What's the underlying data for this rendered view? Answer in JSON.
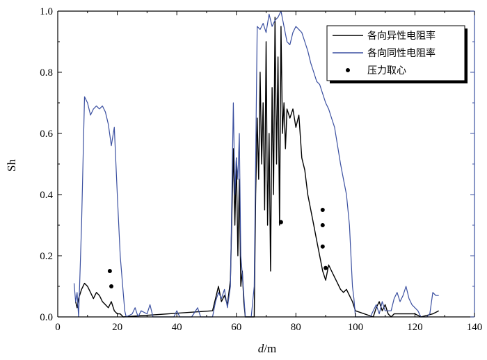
{
  "chart_data": {
    "type": "line",
    "xlabel_italic": "d",
    "xlabel_unit": "/m",
    "ylabel": "Sh",
    "xlim": [
      0,
      140
    ],
    "ylim": [
      0,
      1.0
    ],
    "x_ticks": [
      0,
      20,
      40,
      60,
      80,
      100,
      120,
      140
    ],
    "y_ticks": [
      0.0,
      0.2,
      0.4,
      0.6,
      0.8,
      1.0
    ],
    "x_tick_labels": [
      "0",
      "20",
      "40",
      "60",
      "80",
      "100",
      "120",
      "140"
    ],
    "y_tick_labels": [
      "0.0",
      "0.2",
      "0.4",
      "0.6",
      "0.8",
      "1.0"
    ],
    "grid": false,
    "legend_position": "top-right",
    "series": [
      {
        "name": "各向异性电阻率",
        "kind": "line",
        "color": "#000000",
        "points": [
          [
            6,
            0.05
          ],
          [
            6.5,
            0.03
          ],
          [
            7,
            0.06
          ],
          [
            8,
            0.09
          ],
          [
            9,
            0.11
          ],
          [
            10,
            0.1
          ],
          [
            11,
            0.08
          ],
          [
            12,
            0.06
          ],
          [
            13,
            0.08
          ],
          [
            14,
            0.07
          ],
          [
            15,
            0.05
          ],
          [
            16,
            0.04
          ],
          [
            17,
            0.03
          ],
          [
            18,
            0.05
          ],
          [
            19,
            0.02
          ],
          [
            20,
            0.01
          ],
          [
            21,
            0.01
          ],
          [
            22,
            0.0
          ],
          [
            52,
            0.02
          ],
          [
            53,
            0.06
          ],
          [
            54,
            0.1
          ],
          [
            55,
            0.05
          ],
          [
            56,
            0.07
          ],
          [
            57,
            0.04
          ],
          [
            58,
            0.12
          ],
          [
            59,
            0.55
          ],
          [
            59.5,
            0.3
          ],
          [
            60,
            0.52
          ],
          [
            60.5,
            0.2
          ],
          [
            61,
            0.45
          ],
          [
            61.5,
            0.1
          ],
          [
            62,
            0.15
          ],
          [
            62.5,
            0.05
          ],
          [
            63,
            0.0
          ],
          [
            66,
            0.0
          ],
          [
            66.5,
            0.4
          ],
          [
            67,
            0.65
          ],
          [
            67.5,
            0.45
          ],
          [
            68,
            0.8
          ],
          [
            68.5,
            0.5
          ],
          [
            69,
            0.7
          ],
          [
            69.5,
            0.35
          ],
          [
            70,
            0.9
          ],
          [
            70.5,
            0.3
          ],
          [
            71,
            0.6
          ],
          [
            71.5,
            0.15
          ],
          [
            72,
            0.75
          ],
          [
            72.5,
            0.4
          ],
          [
            73,
            0.98
          ],
          [
            73.5,
            0.5
          ],
          [
            74,
            0.85
          ],
          [
            74.5,
            0.3
          ],
          [
            75,
            0.95
          ],
          [
            75.5,
            0.6
          ],
          [
            76,
            0.7
          ],
          [
            76.5,
            0.55
          ],
          [
            77,
            0.68
          ],
          [
            78,
            0.65
          ],
          [
            79,
            0.68
          ],
          [
            80,
            0.62
          ],
          [
            81,
            0.66
          ],
          [
            82,
            0.52
          ],
          [
            83,
            0.48
          ],
          [
            84,
            0.4
          ],
          [
            85,
            0.35
          ],
          [
            86,
            0.3
          ],
          [
            87,
            0.25
          ],
          [
            88,
            0.2
          ],
          [
            89,
            0.15
          ],
          [
            90,
            0.12
          ],
          [
            91,
            0.17
          ],
          [
            92,
            0.15
          ],
          [
            93,
            0.13
          ],
          [
            94,
            0.11
          ],
          [
            95,
            0.09
          ],
          [
            96,
            0.08
          ],
          [
            97,
            0.09
          ],
          [
            98,
            0.07
          ],
          [
            99,
            0.05
          ],
          [
            100,
            0.02
          ],
          [
            106,
            0.0
          ],
          [
            107,
            0.03
          ],
          [
            108,
            0.05
          ],
          [
            109,
            0.02
          ],
          [
            110,
            0.04
          ],
          [
            111,
            0.01
          ],
          [
            112,
            0.0
          ],
          [
            113,
            0.01
          ],
          [
            120,
            0.01
          ],
          [
            122,
            0.0
          ],
          [
            126,
            0.01
          ],
          [
            128,
            0.02
          ]
        ]
      },
      {
        "name": "各向同性电阻率",
        "kind": "line",
        "color": "#3a4fa0",
        "points": [
          [
            5.5,
            0.11
          ],
          [
            6,
            0.05
          ],
          [
            6.5,
            0.08
          ],
          [
            7,
            0.0
          ],
          [
            8,
            0.3
          ],
          [
            9,
            0.72
          ],
          [
            10,
            0.7
          ],
          [
            11,
            0.66
          ],
          [
            12,
            0.68
          ],
          [
            13,
            0.69
          ],
          [
            14,
            0.68
          ],
          [
            15,
            0.69
          ],
          [
            16,
            0.67
          ],
          [
            17,
            0.63
          ],
          [
            18,
            0.56
          ],
          [
            19,
            0.62
          ],
          [
            20,
            0.4
          ],
          [
            21,
            0.2
          ],
          [
            22,
            0.08
          ],
          [
            22.5,
            0.02
          ],
          [
            23,
            0.0
          ],
          [
            25,
            0.01
          ],
          [
            26,
            0.03
          ],
          [
            27,
            0.0
          ],
          [
            28,
            0.02
          ],
          [
            30,
            0.01
          ],
          [
            31,
            0.04
          ],
          [
            32,
            0.0
          ],
          [
            39,
            0.0
          ],
          [
            40,
            0.02
          ],
          [
            41,
            0.0
          ],
          [
            45,
            0.0
          ],
          [
            47,
            0.03
          ],
          [
            48,
            0.0
          ],
          [
            52,
            0.0
          ],
          [
            53,
            0.05
          ],
          [
            54,
            0.08
          ],
          [
            55,
            0.06
          ],
          [
            56,
            0.09
          ],
          [
            57,
            0.03
          ],
          [
            58,
            0.1
          ],
          [
            59,
            0.7
          ],
          [
            59.5,
            0.4
          ],
          [
            60,
            0.52
          ],
          [
            60.5,
            0.45
          ],
          [
            61,
            0.6
          ],
          [
            61.5,
            0.2
          ],
          [
            62,
            0.14
          ],
          [
            63,
            0.0
          ],
          [
            65,
            0.0
          ],
          [
            66,
            0.1
          ],
          [
            67,
            0.95
          ],
          [
            68,
            0.94
          ],
          [
            69,
            0.96
          ],
          [
            70,
            0.93
          ],
          [
            71,
            0.99
          ],
          [
            72,
            0.95
          ],
          [
            73,
            0.97
          ],
          [
            74,
            0.98
          ],
          [
            75,
            1.0
          ],
          [
            76,
            0.95
          ],
          [
            77,
            0.9
          ],
          [
            78,
            0.89
          ],
          [
            79,
            0.93
          ],
          [
            80,
            0.95
          ],
          [
            81,
            0.94
          ],
          [
            82,
            0.93
          ],
          [
            83,
            0.9
          ],
          [
            84,
            0.87
          ],
          [
            85,
            0.83
          ],
          [
            86,
            0.8
          ],
          [
            87,
            0.77
          ],
          [
            88,
            0.76
          ],
          [
            89,
            0.73
          ],
          [
            90,
            0.7
          ],
          [
            91,
            0.68
          ],
          [
            92,
            0.65
          ],
          [
            93,
            0.62
          ],
          [
            94,
            0.56
          ],
          [
            95,
            0.5
          ],
          [
            96,
            0.45
          ],
          [
            97,
            0.4
          ],
          [
            98,
            0.3
          ],
          [
            99,
            0.1
          ],
          [
            99.5,
            0.06
          ],
          [
            100,
            0.0
          ],
          [
            105,
            0.0
          ],
          [
            106,
            0.02
          ],
          [
            107,
            0.04
          ],
          [
            108,
            0.01
          ],
          [
            109,
            0.05
          ],
          [
            110,
            0.02
          ],
          [
            112,
            0.02
          ],
          [
            113,
            0.06
          ],
          [
            114,
            0.08
          ],
          [
            115,
            0.05
          ],
          [
            116,
            0.07
          ],
          [
            117,
            0.1
          ],
          [
            118,
            0.06
          ],
          [
            119,
            0.04
          ],
          [
            120,
            0.03
          ],
          [
            121,
            0.02
          ],
          [
            122,
            0.0
          ],
          [
            124,
            0.0
          ],
          [
            125,
            0.01
          ],
          [
            126,
            0.08
          ],
          [
            127,
            0.07
          ],
          [
            128,
            0.07
          ]
        ]
      },
      {
        "name": "压力取心",
        "kind": "scatter",
        "color": "#000000",
        "points": [
          [
            17.5,
            0.15
          ],
          [
            18,
            0.1
          ],
          [
            75,
            0.31
          ],
          [
            89,
            0.35
          ],
          [
            89,
            0.3
          ],
          [
            89,
            0.23
          ],
          [
            90,
            0.16
          ]
        ]
      }
    ]
  }
}
